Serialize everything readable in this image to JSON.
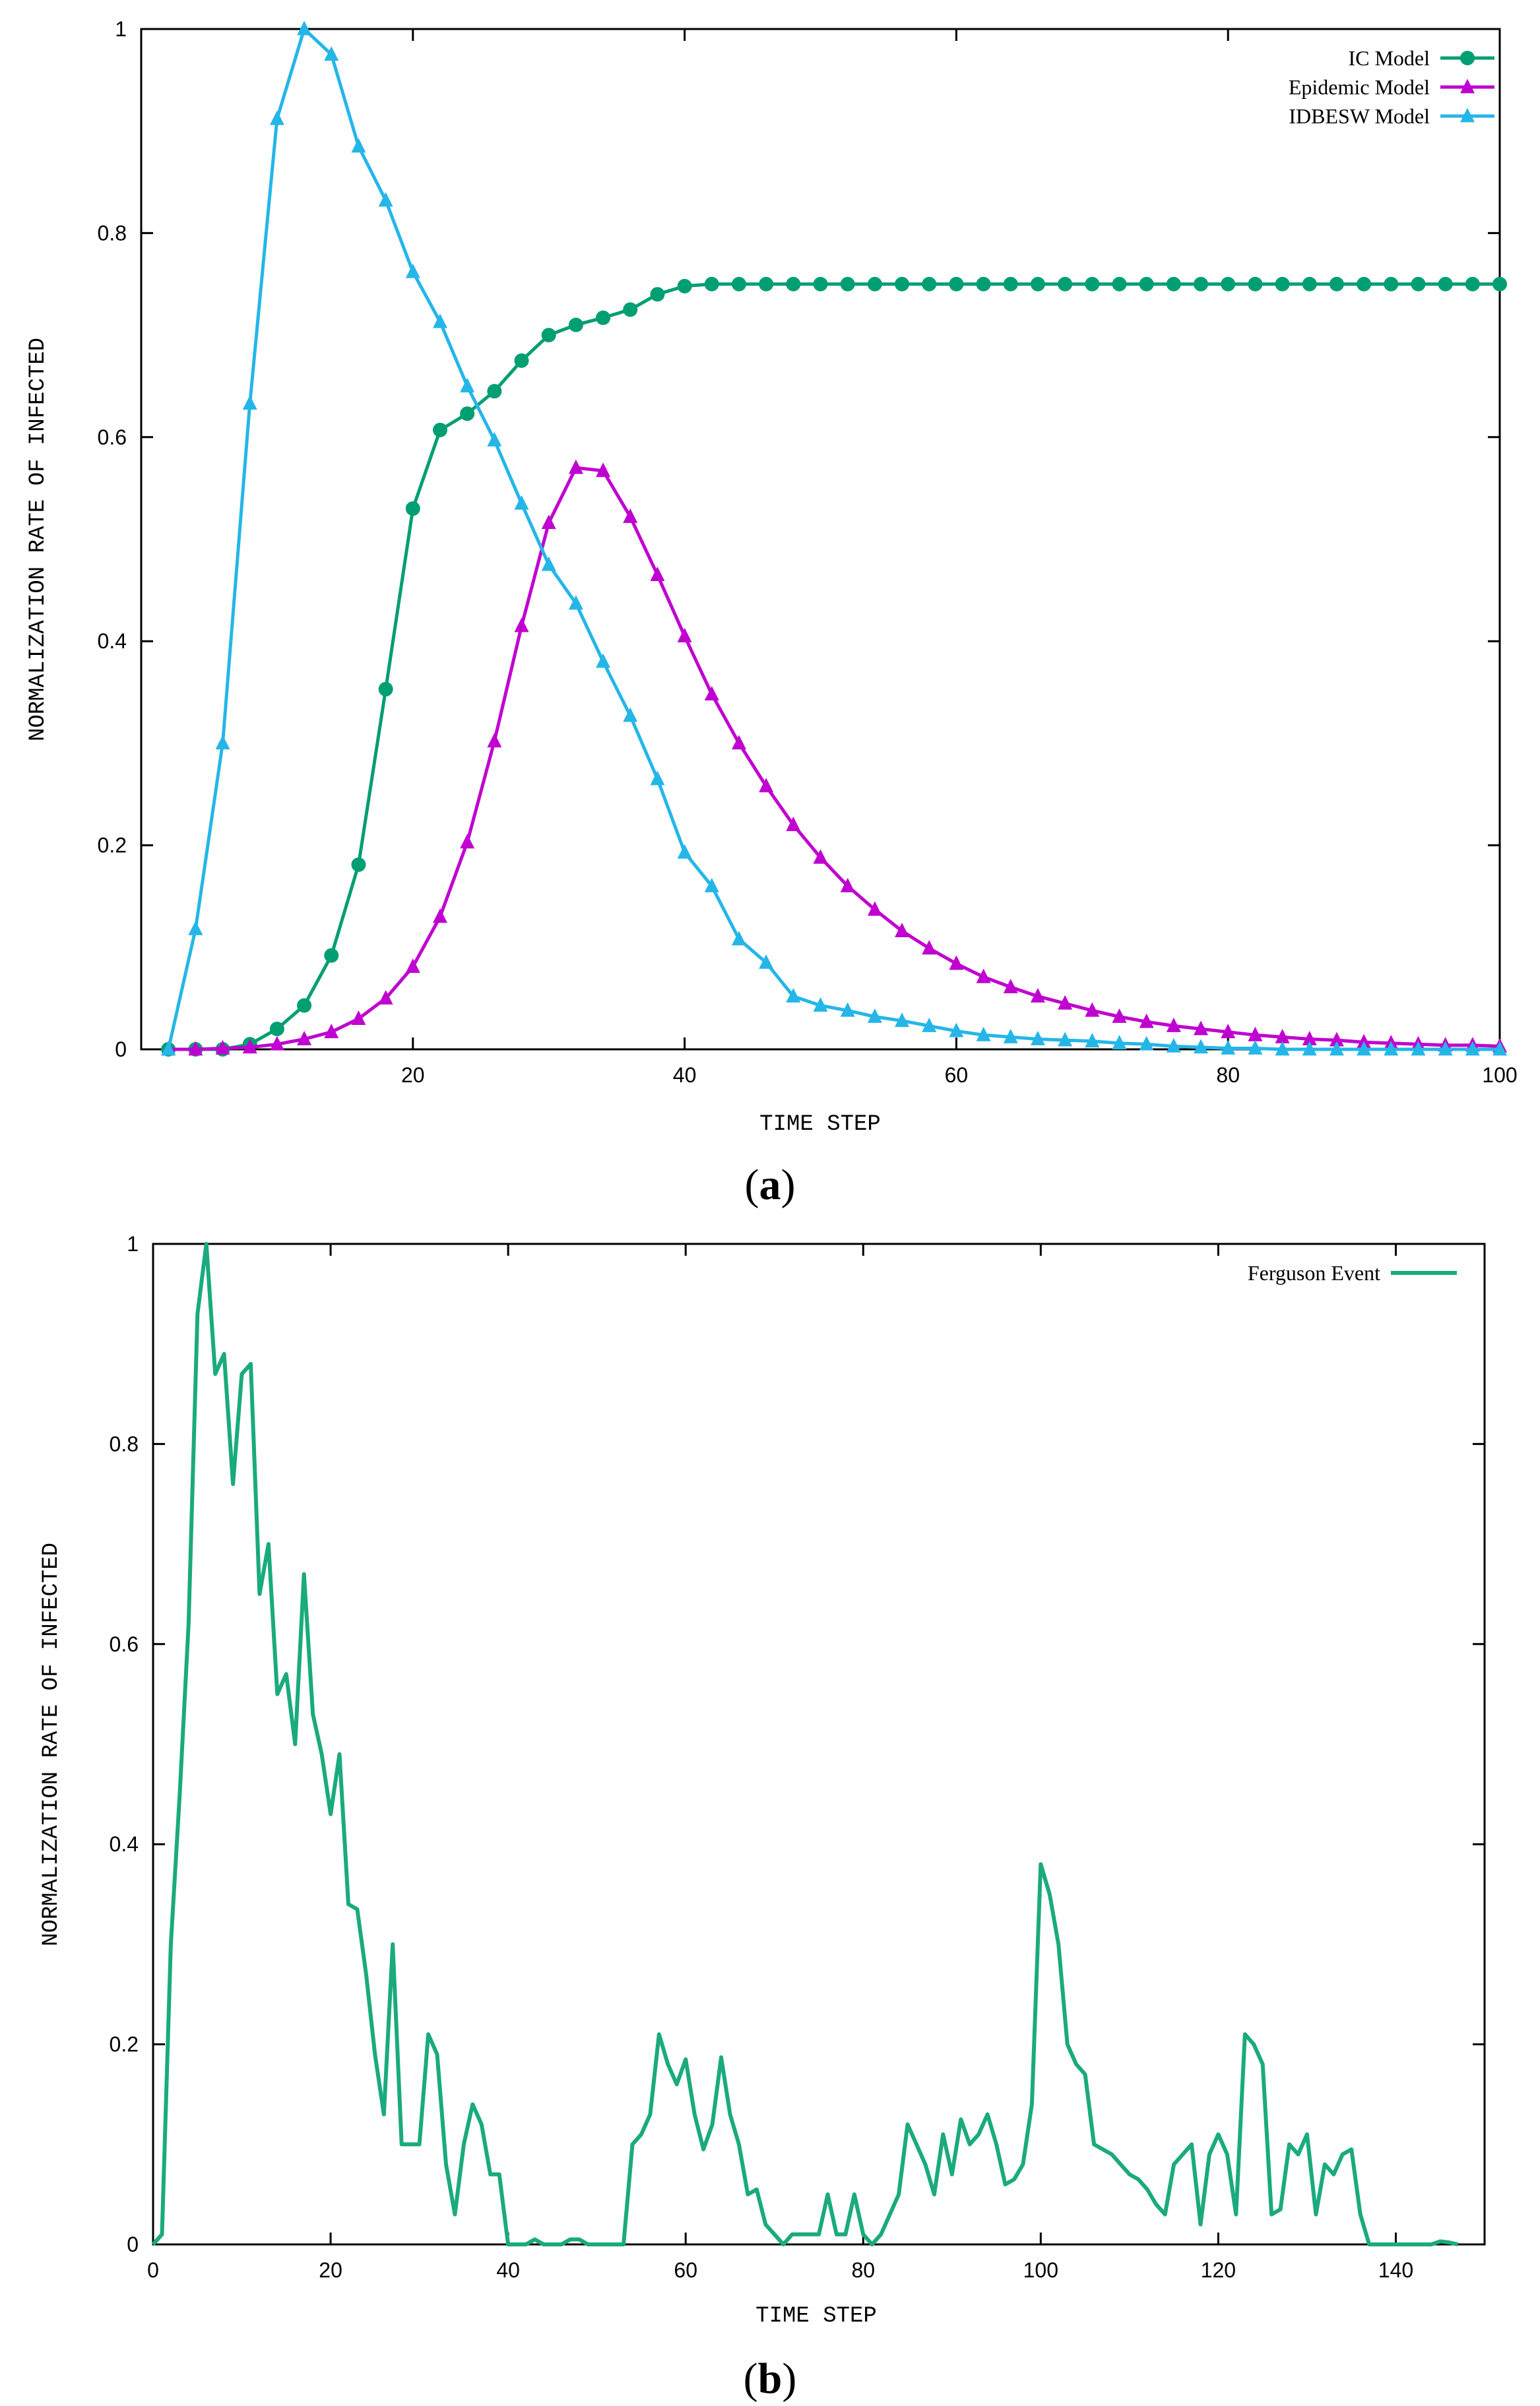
{
  "chart_data": [
    {
      "type": "line",
      "caption": "(a)",
      "caption_prefix": "(",
      "caption_letter": "a",
      "caption_suffix": ")",
      "title": "",
      "xlabel": "TIME STEP",
      "ylabel": "NORMALIZATION RATE OF INFECTED",
      "xlim": [
        0,
        100
      ],
      "ylim": [
        0,
        1
      ],
      "xticks": [
        20,
        40,
        60,
        80,
        100
      ],
      "xtick_labels": [
        "20",
        "40",
        "60",
        "80",
        "100"
      ],
      "yticks": [
        0,
        0.2,
        0.4,
        0.6,
        0.8,
        1
      ],
      "ytick_labels": [
        "0",
        "0.2",
        "0.4",
        "0.6",
        "0.8",
        "1"
      ],
      "legend_position": "top-right",
      "x": [
        2,
        4,
        6,
        8,
        10,
        12,
        14,
        16,
        18,
        20,
        22,
        24,
        26,
        28,
        30,
        32,
        34,
        36,
        38,
        40,
        42,
        44,
        46,
        48,
        50,
        52,
        54,
        56,
        58,
        60,
        62,
        64,
        66,
        68,
        70,
        72,
        74,
        76,
        78,
        80,
        82,
        84,
        86,
        88,
        90,
        92,
        94,
        96,
        98,
        100
      ],
      "series": [
        {
          "name": "IC Model",
          "color": "#009e73",
          "marker": "circle",
          "values": [
            0,
            0,
            0,
            0.005,
            0.02,
            0.043,
            0.092,
            0.181,
            0.353,
            0.53,
            0.607,
            0.623,
            0.645,
            0.675,
            0.7,
            0.71,
            0.717,
            0.725,
            0.74,
            0.748,
            0.75,
            0.75,
            0.75,
            0.75,
            0.75,
            0.75,
            0.75,
            0.75,
            0.75,
            0.75,
            0.75,
            0.75,
            0.75,
            0.75,
            0.75,
            0.75,
            0.75,
            0.75,
            0.75,
            0.75,
            0.75,
            0.75,
            0.75,
            0.75,
            0.75,
            0.75,
            0.75,
            0.75,
            0.75,
            0.75
          ]
        },
        {
          "name": "Epidemic Model",
          "color": "#c000d0",
          "marker": "triangle",
          "values": [
            0,
            0,
            0.001,
            0.002,
            0.005,
            0.01,
            0.017,
            0.03,
            0.05,
            0.081,
            0.13,
            0.203,
            0.302,
            0.415,
            0.516,
            0.57,
            0.567,
            0.522,
            0.465,
            0.405,
            0.348,
            0.3,
            0.258,
            0.22,
            0.188,
            0.16,
            0.137,
            0.116,
            0.099,
            0.084,
            0.071,
            0.061,
            0.052,
            0.045,
            0.038,
            0.032,
            0.027,
            0.023,
            0.02,
            0.017,
            0.014,
            0.012,
            0.01,
            0.009,
            0.007,
            0.006,
            0.005,
            0.004,
            0.004,
            0.003
          ]
        },
        {
          "name": "IDBESW Model",
          "color": "#25b6e8",
          "marker": "triangle",
          "values": [
            0,
            0.118,
            0.3,
            0.633,
            0.912,
            1.0,
            0.975,
            0.885,
            0.832,
            0.762,
            0.713,
            0.65,
            0.597,
            0.535,
            0.475,
            0.437,
            0.38,
            0.327,
            0.265,
            0.193,
            0.16,
            0.108,
            0.085,
            0.052,
            0.043,
            0.038,
            0.032,
            0.028,
            0.023,
            0.018,
            0.014,
            0.012,
            0.01,
            0.009,
            0.008,
            0.006,
            0.005,
            0.003,
            0.002,
            0.001,
            0.001,
            0,
            0,
            0,
            0,
            0,
            0,
            0,
            0,
            0
          ]
        }
      ]
    },
    {
      "type": "line",
      "caption": "(b)",
      "caption_prefix": "(",
      "caption_letter": "b",
      "caption_suffix": ")",
      "title": "",
      "xlabel": "TIME STEP",
      "ylabel": "NORMALIZATION RATE OF INFECTED",
      "xlim": [
        0,
        150
      ],
      "ylim": [
        0,
        1
      ],
      "xticks": [
        0,
        20,
        40,
        60,
        80,
        100,
        120,
        140
      ],
      "xtick_labels": [
        "0",
        "20",
        "40",
        "60",
        "80",
        "100",
        "120",
        "140"
      ],
      "yticks": [
        0,
        0.2,
        0.4,
        0.6,
        0.8,
        1
      ],
      "ytick_labels": [
        "0",
        "0.2",
        "0.4",
        "0.6",
        "0.8",
        "1"
      ],
      "legend_position": "top-right",
      "series": [
        {
          "name": "Ferguson Event",
          "color": "#1aaa7e",
          "marker": "none",
          "x": [
            0,
            1,
            2,
            3,
            4,
            5,
            6,
            7,
            8,
            9,
            10,
            11,
            12,
            13,
            14,
            15,
            16,
            17,
            18,
            19,
            20,
            21,
            22,
            23,
            24,
            25,
            26,
            27,
            28,
            29,
            30,
            31,
            32,
            33,
            34,
            35,
            36,
            37,
            38,
            39,
            40,
            41,
            42,
            43,
            44,
            45,
            46,
            47,
            48,
            49,
            50,
            51,
            52,
            53,
            54,
            55,
            56,
            57,
            58,
            59,
            60,
            61,
            62,
            63,
            64,
            65,
            66,
            67,
            68,
            69,
            70,
            71,
            72,
            73,
            74,
            75,
            76,
            77,
            78,
            79,
            80,
            81,
            82,
            83,
            84,
            85,
            86,
            87,
            88,
            89,
            90,
            91,
            92,
            93,
            94,
            95,
            96,
            97,
            98,
            99,
            100,
            101,
            102,
            103,
            104,
            105,
            106,
            107,
            108,
            109,
            110,
            111,
            112,
            113,
            114,
            115,
            116,
            117,
            118,
            119,
            120,
            121,
            122,
            123,
            124,
            125,
            126,
            127,
            128,
            129,
            130,
            131,
            132,
            133,
            134,
            135,
            136,
            137,
            138,
            139,
            140,
            141,
            142,
            143,
            144,
            145,
            146,
            147
          ],
          "values": [
            0,
            0.01,
            0.3,
            0.45,
            0.62,
            0.93,
            1.0,
            0.87,
            0.89,
            0.76,
            0.87,
            0.88,
            0.65,
            0.7,
            0.55,
            0.57,
            0.5,
            0.67,
            0.53,
            0.49,
            0.43,
            0.49,
            0.34,
            0.335,
            0.27,
            0.19,
            0.13,
            0.3,
            0.1,
            0.1,
            0.1,
            0.21,
            0.19,
            0.08,
            0.03,
            0.1,
            0.14,
            0.12,
            0.07,
            0.07,
            0.0,
            0.0,
            0.0,
            0.005,
            0.0,
            0.0,
            0.0,
            0.005,
            0.005,
            0.0,
            0.0,
            0.0,
            0.0,
            0.0,
            0.1,
            0.11,
            0.13,
            0.21,
            0.18,
            0.16,
            0.185,
            0.13,
            0.095,
            0.12,
            0.187,
            0.13,
            0.1,
            0.05,
            0.055,
            0.02,
            0.01,
            0.0,
            0.01,
            0.01,
            0.01,
            0.01,
            0.05,
            0.01,
            0.01,
            0.05,
            0.01,
            0.0,
            0.01,
            0.03,
            0.05,
            0.12,
            0.1,
            0.08,
            0.05,
            0.11,
            0.07,
            0.125,
            0.1,
            0.11,
            0.13,
            0.1,
            0.06,
            0.065,
            0.08,
            0.14,
            0.38,
            0.35,
            0.3,
            0.2,
            0.18,
            0.17,
            0.1,
            0.095,
            0.09,
            0.08,
            0.07,
            0.065,
            0.055,
            0.04,
            0.03,
            0.08,
            0.09,
            0.1,
            0.02,
            0.09,
            0.11,
            0.09,
            0.03,
            0.21,
            0.2,
            0.18,
            0.03,
            0.035,
            0.1,
            0.09,
            0.11,
            0.03,
            0.08,
            0.07,
            0.09,
            0.095,
            0.03,
            0.0,
            0.0,
            0.0,
            0.0,
            0.0,
            0.0,
            0.0,
            0.0,
            0.003,
            0.002,
            0.0
          ]
        }
      ]
    }
  ]
}
